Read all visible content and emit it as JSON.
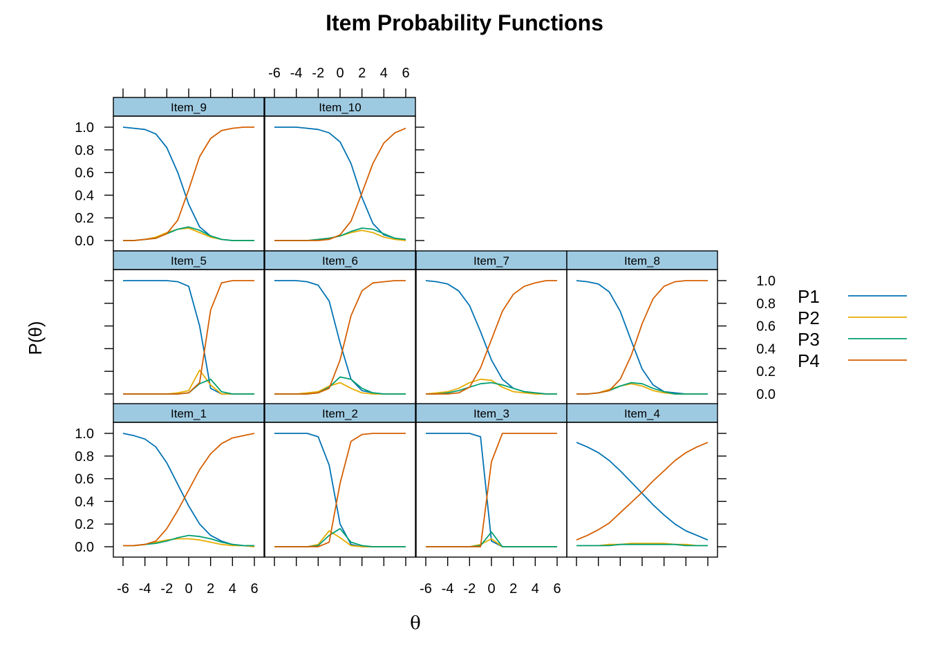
{
  "chart_data": {
    "type": "line",
    "title": "Item Probability Functions",
    "xlabel": "θ",
    "ylabel": "P(θ)",
    "x_range": [
      -6,
      6
    ],
    "y_range": [
      0,
      1
    ],
    "x_ticks": [
      "-6",
      "-4",
      "-2",
      "0",
      "2",
      "4",
      "6"
    ],
    "y_ticks": [
      "0.0",
      "0.2",
      "0.4",
      "0.6",
      "0.8",
      "1.0"
    ],
    "x": [
      -6,
      -5,
      -4,
      -3,
      -2,
      -1,
      0,
      1,
      2,
      3,
      4,
      5,
      6
    ],
    "legend": {
      "position": "right",
      "entries": [
        {
          "label": "P1",
          "color": "#0072B2"
        },
        {
          "label": "P2",
          "color": "#E6AC00"
        },
        {
          "label": "P3",
          "color": "#009E73"
        },
        {
          "label": "P4",
          "color": "#D55E00"
        }
      ]
    },
    "panels": [
      {
        "name": "Item_9",
        "series": [
          {
            "name": "P1",
            "values": [
              1.0,
              0.99,
              0.98,
              0.94,
              0.82,
              0.6,
              0.32,
              0.12,
              0.04,
              0.01,
              0.0,
              0.0,
              0.0
            ]
          },
          {
            "name": "P2",
            "values": [
              0.0,
              0.0,
              0.01,
              0.03,
              0.07,
              0.1,
              0.11,
              0.07,
              0.03,
              0.01,
              0.0,
              0.0,
              0.0
            ]
          },
          {
            "name": "P3",
            "values": [
              0.0,
              0.0,
              0.01,
              0.02,
              0.06,
              0.1,
              0.12,
              0.09,
              0.04,
              0.01,
              0.0,
              0.0,
              0.0
            ]
          },
          {
            "name": "P4",
            "values": [
              0.0,
              0.0,
              0.01,
              0.02,
              0.06,
              0.18,
              0.45,
              0.74,
              0.9,
              0.97,
              0.99,
              1.0,
              1.0
            ]
          }
        ]
      },
      {
        "name": "Item_10",
        "series": [
          {
            "name": "P1",
            "values": [
              1.0,
              1.0,
              1.0,
              0.99,
              0.98,
              0.95,
              0.87,
              0.68,
              0.38,
              0.15,
              0.05,
              0.02,
              0.0
            ]
          },
          {
            "name": "P2",
            "values": [
              0.0,
              0.0,
              0.0,
              0.0,
              0.01,
              0.02,
              0.04,
              0.07,
              0.09,
              0.07,
              0.03,
              0.01,
              0.0
            ]
          },
          {
            "name": "P3",
            "values": [
              0.0,
              0.0,
              0.0,
              0.0,
              0.01,
              0.02,
              0.04,
              0.08,
              0.11,
              0.1,
              0.06,
              0.02,
              0.01
            ]
          },
          {
            "name": "P4",
            "values": [
              0.0,
              0.0,
              0.0,
              0.0,
              0.0,
              0.01,
              0.05,
              0.17,
              0.42,
              0.68,
              0.86,
              0.95,
              0.99
            ]
          }
        ]
      },
      {
        "name": "Item_5",
        "series": [
          {
            "name": "P1",
            "values": [
              1.0,
              1.0,
              1.0,
              1.0,
              1.0,
              0.99,
              0.95,
              0.6,
              0.05,
              0.0,
              0.0,
              0.0,
              0.0
            ]
          },
          {
            "name": "P2",
            "values": [
              0.0,
              0.0,
              0.0,
              0.0,
              0.0,
              0.01,
              0.03,
              0.21,
              0.08,
              0.0,
              0.0,
              0.0,
              0.0
            ]
          },
          {
            "name": "P3",
            "values": [
              0.0,
              0.0,
              0.0,
              0.0,
              0.0,
              0.0,
              0.01,
              0.09,
              0.13,
              0.02,
              0.0,
              0.0,
              0.0
            ]
          },
          {
            "name": "P4",
            "values": [
              0.0,
              0.0,
              0.0,
              0.0,
              0.0,
              0.0,
              0.01,
              0.1,
              0.74,
              0.98,
              1.0,
              1.0,
              1.0
            ]
          }
        ]
      },
      {
        "name": "Item_6",
        "series": [
          {
            "name": "P1",
            "values": [
              1.0,
              1.0,
              1.0,
              0.99,
              0.96,
              0.82,
              0.45,
              0.13,
              0.03,
              0.01,
              0.0,
              0.0,
              0.0
            ]
          },
          {
            "name": "P2",
            "values": [
              0.0,
              0.0,
              0.0,
              0.01,
              0.02,
              0.07,
              0.1,
              0.05,
              0.01,
              0.0,
              0.0,
              0.0,
              0.0
            ]
          },
          {
            "name": "P3",
            "values": [
              0.0,
              0.0,
              0.0,
              0.0,
              0.01,
              0.06,
              0.15,
              0.13,
              0.05,
              0.01,
              0.0,
              0.0,
              0.0
            ]
          },
          {
            "name": "P4",
            "values": [
              0.0,
              0.0,
              0.0,
              0.0,
              0.01,
              0.05,
              0.3,
              0.69,
              0.91,
              0.98,
              0.99,
              1.0,
              1.0
            ]
          }
        ]
      },
      {
        "name": "Item_7",
        "series": [
          {
            "name": "P1",
            "values": [
              1.0,
              0.99,
              0.97,
              0.91,
              0.78,
              0.55,
              0.3,
              0.13,
              0.05,
              0.02,
              0.01,
              0.0,
              0.0
            ]
          },
          {
            "name": "P2",
            "values": [
              0.0,
              0.01,
              0.02,
              0.05,
              0.1,
              0.13,
              0.12,
              0.06,
              0.02,
              0.01,
              0.0,
              0.0,
              0.0
            ]
          },
          {
            "name": "P3",
            "values": [
              0.0,
              0.0,
              0.01,
              0.03,
              0.06,
              0.09,
              0.1,
              0.08,
              0.05,
              0.02,
              0.01,
              0.0,
              0.0
            ]
          },
          {
            "name": "P4",
            "values": [
              0.0,
              0.0,
              0.0,
              0.01,
              0.06,
              0.23,
              0.48,
              0.73,
              0.88,
              0.95,
              0.98,
              1.0,
              1.0
            ]
          }
        ]
      },
      {
        "name": "Item_8",
        "series": [
          {
            "name": "P1",
            "values": [
              1.0,
              0.99,
              0.97,
              0.9,
              0.73,
              0.47,
              0.22,
              0.08,
              0.02,
              0.01,
              0.0,
              0.0,
              0.0
            ]
          },
          {
            "name": "P2",
            "values": [
              0.0,
              0.0,
              0.01,
              0.04,
              0.07,
              0.09,
              0.07,
              0.03,
              0.01,
              0.0,
              0.0,
              0.0,
              0.0
            ]
          },
          {
            "name": "P3",
            "values": [
              0.0,
              0.0,
              0.01,
              0.03,
              0.07,
              0.1,
              0.09,
              0.05,
              0.02,
              0.0,
              0.0,
              0.0,
              0.0
            ]
          },
          {
            "name": "P4",
            "values": [
              0.0,
              0.0,
              0.01,
              0.03,
              0.13,
              0.34,
              0.62,
              0.84,
              0.95,
              0.99,
              1.0,
              1.0,
              1.0
            ]
          }
        ]
      },
      {
        "name": "Item_1",
        "series": [
          {
            "name": "P1",
            "values": [
              1.0,
              0.98,
              0.95,
              0.88,
              0.74,
              0.55,
              0.36,
              0.2,
              0.1,
              0.05,
              0.02,
              0.01,
              0.0
            ]
          },
          {
            "name": "P2",
            "values": [
              0.01,
              0.01,
              0.02,
              0.04,
              0.06,
              0.07,
              0.07,
              0.06,
              0.04,
              0.02,
              0.01,
              0.01,
              0.0
            ]
          },
          {
            "name": "P3",
            "values": [
              0.01,
              0.01,
              0.02,
              0.03,
              0.05,
              0.08,
              0.1,
              0.09,
              0.07,
              0.04,
              0.02,
              0.01,
              0.01
            ]
          },
          {
            "name": "P4",
            "values": [
              0.01,
              0.01,
              0.02,
              0.05,
              0.16,
              0.32,
              0.5,
              0.68,
              0.82,
              0.91,
              0.96,
              0.98,
              1.0
            ]
          }
        ]
      },
      {
        "name": "Item_2",
        "series": [
          {
            "name": "P1",
            "values": [
              1.0,
              1.0,
              1.0,
              1.0,
              0.97,
              0.72,
              0.2,
              0.02,
              0.0,
              0.0,
              0.0,
              0.0,
              0.0
            ]
          },
          {
            "name": "P2",
            "values": [
              0.0,
              0.0,
              0.0,
              0.0,
              0.02,
              0.14,
              0.08,
              0.01,
              0.0,
              0.0,
              0.0,
              0.0,
              0.0
            ]
          },
          {
            "name": "P3",
            "values": [
              0.0,
              0.0,
              0.0,
              0.0,
              0.01,
              0.1,
              0.16,
              0.04,
              0.01,
              0.0,
              0.0,
              0.0,
              0.0
            ]
          },
          {
            "name": "P4",
            "values": [
              0.0,
              0.0,
              0.0,
              0.0,
              0.0,
              0.04,
              0.56,
              0.93,
              0.99,
              1.0,
              1.0,
              1.0,
              1.0
            ]
          }
        ]
      },
      {
        "name": "Item_3",
        "series": [
          {
            "name": "P1",
            "values": [
              1.0,
              1.0,
              1.0,
              1.0,
              1.0,
              0.97,
              0.05,
              0.0,
              0.0,
              0.0,
              0.0,
              0.0,
              0.0
            ]
          },
          {
            "name": "P2",
            "values": [
              0.0,
              0.0,
              0.0,
              0.0,
              0.0,
              0.02,
              0.07,
              0.0,
              0.0,
              0.0,
              0.0,
              0.0,
              0.0
            ]
          },
          {
            "name": "P3",
            "values": [
              0.0,
              0.0,
              0.0,
              0.0,
              0.0,
              0.01,
              0.13,
              0.0,
              0.0,
              0.0,
              0.0,
              0.0,
              0.0
            ]
          },
          {
            "name": "P4",
            "values": [
              0.0,
              0.0,
              0.0,
              0.0,
              0.0,
              0.0,
              0.75,
              1.0,
              1.0,
              1.0,
              1.0,
              1.0,
              1.0
            ]
          }
        ]
      },
      {
        "name": "Item_4",
        "series": [
          {
            "name": "P1",
            "values": [
              0.92,
              0.88,
              0.83,
              0.76,
              0.67,
              0.57,
              0.47,
              0.37,
              0.28,
              0.2,
              0.14,
              0.1,
              0.06
            ]
          },
          {
            "name": "P2",
            "values": [
              0.01,
              0.01,
              0.01,
              0.02,
              0.02,
              0.03,
              0.03,
              0.03,
              0.03,
              0.02,
              0.02,
              0.01,
              0.01
            ]
          },
          {
            "name": "P3",
            "values": [
              0.01,
              0.01,
              0.01,
              0.01,
              0.02,
              0.02,
              0.02,
              0.02,
              0.02,
              0.02,
              0.01,
              0.01,
              0.01
            ]
          },
          {
            "name": "P4",
            "values": [
              0.06,
              0.1,
              0.15,
              0.21,
              0.3,
              0.39,
              0.48,
              0.58,
              0.67,
              0.76,
              0.83,
              0.88,
              0.92
            ]
          }
        ]
      }
    ]
  }
}
